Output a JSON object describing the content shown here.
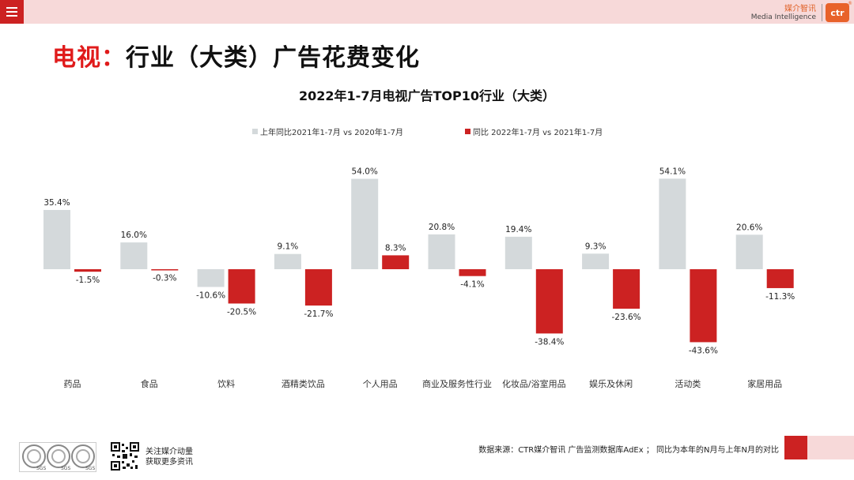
{
  "header": {
    "brand_cn": "媒介智讯",
    "brand_en": "Media Intelligence",
    "logo_text": "ctr",
    "logo_mark": "®"
  },
  "title": {
    "accent": "电视：",
    "main": "行业（大类）广告花费变化"
  },
  "colors": {
    "series1": "#d4d9db",
    "series2": "#cc2222",
    "accent": "#e01b1b"
  },
  "chart_data": {
    "type": "bar",
    "title": "2022年1-7月电视广告TOP10行业（大类）",
    "categories": [
      "药品",
      "食品",
      "饮料",
      "酒精类饮品",
      "个人用品",
      "商业及服务性行业",
      "化妆品/浴室用品",
      "娱乐及休闲",
      "活动类",
      "家居用品"
    ],
    "series": [
      {
        "name": "上年同比2021年1-7月  vs  2020年1-7月",
        "values": [
          35.4,
          16.0,
          -10.6,
          9.1,
          54.0,
          20.8,
          19.4,
          9.3,
          54.1,
          20.6
        ]
      },
      {
        "name": "同比 2022年1-7月  vs  2021年1-7月",
        "values": [
          -1.5,
          -0.3,
          -20.5,
          -21.7,
          8.3,
          -4.1,
          -38.4,
          -23.6,
          -43.6,
          -11.3
        ]
      }
    ],
    "unit": "%",
    "legend_position": "top",
    "grid": false
  },
  "footer": {
    "follow_line1": "关注媒介动量",
    "follow_line2": "获取更多资讯",
    "source": "数据来源：CTR媒介智讯 广告监测数据库AdEx ；  同比为本年的N月与上年N月的对比",
    "cert_label": "SGS"
  }
}
